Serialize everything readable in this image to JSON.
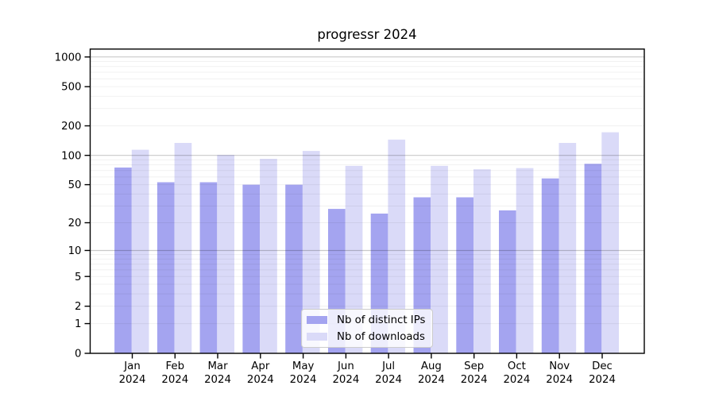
{
  "title": "progressr 2024",
  "legend": {
    "items": [
      {
        "label": "Nb of distinct IPs"
      },
      {
        "label": "Nb of downloads"
      }
    ]
  },
  "colors": {
    "ips_bar": "#a4a4f0",
    "downloads_bar": "#dadaf8",
    "grid_major": "rgba(0,0,0,0.21)",
    "grid_minor": "rgba(0,0,0,0.06)",
    "axis": "#000000",
    "text": "#000000"
  },
  "chart_data": {
    "type": "bar",
    "title": "progressr 2024",
    "scale": "log10(value+1), 0 at baseline",
    "categories": [
      "Jan",
      "Feb",
      "Mar",
      "Apr",
      "May",
      "Jun",
      "Jul",
      "Aug",
      "Sep",
      "Oct",
      "Nov",
      "Dec"
    ],
    "year_label": "2024",
    "series": [
      {
        "name": "Nb of distinct IPs",
        "values": [
          75,
          53,
          53,
          50,
          50,
          28,
          25,
          37,
          37,
          27,
          58,
          82
        ]
      },
      {
        "name": "Nb of downloads",
        "values": [
          114,
          134,
          101,
          92,
          111,
          78,
          145,
          78,
          72,
          74,
          134,
          172
        ]
      }
    ],
    "y_ticks": [
      0,
      1,
      2,
      5,
      10,
      20,
      50,
      100,
      200,
      500,
      1000
    ],
    "y_minor_grid": [
      1,
      2,
      3,
      4,
      5,
      6,
      7,
      8,
      9,
      20,
      30,
      40,
      50,
      60,
      70,
      80,
      90,
      200,
      300,
      400,
      500,
      600,
      700,
      800,
      900
    ],
    "y_major_grid": [
      10,
      100,
      1000
    ],
    "ylim": [
      0,
      1200
    ],
    "xlabel": "",
    "ylabel": "",
    "grid": true,
    "legend_position": "bottom-center"
  }
}
